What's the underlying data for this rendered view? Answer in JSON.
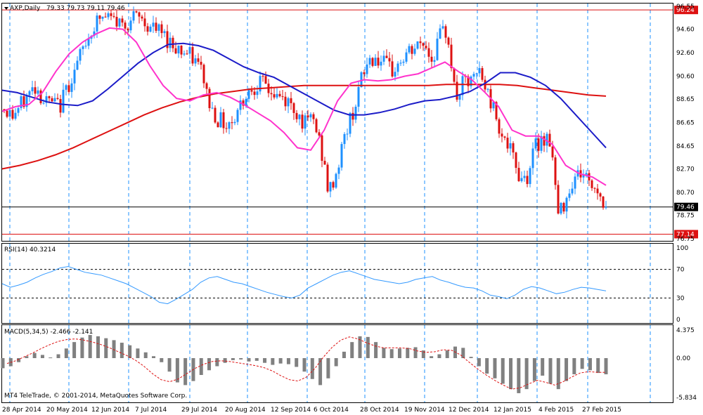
{
  "header": {
    "symbol_label": "AXP,Daily",
    "ohlc_values": "79.33 79.73 79.11 79.46"
  },
  "rsi_panel": {
    "label": "RSI(14) 40.3214"
  },
  "macd_panel": {
    "label": "MACD(5,34,5) -2.466 -2.141"
  },
  "copyright": "MT4 TeleTrade, © 2001-2014, MetaQuotes Software Corp.",
  "colors": {
    "background": "#ffffff",
    "bull_candle": "#1e90ff",
    "bear_candle": "#dd1111",
    "ma_fast": "#ff33cc",
    "ma_mid": "#1c1cc8",
    "ma_slow": "#dd1111",
    "grid": "#1e90ff",
    "rsi_line": "#3399ff",
    "macd_hist": "#808080",
    "macd_signal": "#dd1111",
    "hline_red": "#dd1111",
    "current_price_line": "#000000"
  },
  "chart_data": [
    {
      "type": "candlestick",
      "title": "AXP,Daily",
      "price_axis_labels": [
        "96.55",
        "94.60",
        "92.60",
        "90.60",
        "88.65",
        "86.65",
        "84.65",
        "82.70",
        "80.70",
        "78.75",
        "76.75"
      ],
      "price_axis_values": [
        96.55,
        94.6,
        92.6,
        90.6,
        88.65,
        86.65,
        84.65,
        82.7,
        80.7,
        78.75,
        76.75
      ],
      "ylim": [
        76.75,
        96.55
      ],
      "x_axis_labels": [
        "28 Apr 2014",
        "20 May 2014",
        "12 Jun 2014",
        "7 Jul 2014",
        "29 Jul 2014",
        "20 Aug 2014",
        "12 Sep 2014",
        "6 Oct 2014",
        "28 Oct 2014",
        "19 Nov 2014",
        "12 Dec 2014",
        "12 Jan 2015",
        "4 Feb 2015",
        "27 Feb 2015"
      ],
      "horizontal_lines": [
        {
          "label": "96.24",
          "value": 96.24,
          "color": "#dd1111"
        },
        {
          "label": "79.46",
          "value": 79.46,
          "color": "#000000"
        },
        {
          "label": "77.14",
          "value": 77.14,
          "color": "#dd1111"
        }
      ],
      "close_series": [
        87.8,
        87.2,
        88.0,
        89.0,
        89.8,
        88.5,
        88.3,
        88.0,
        89.8,
        91.2,
        93.0,
        94.5,
        95.5,
        95.6,
        95.3,
        95.0,
        95.4,
        95.6,
        95.0,
        94.6,
        94.2,
        93.5,
        93.0,
        92.5,
        92.0,
        91.0,
        88.0,
        87.0,
        86.5,
        87.0,
        88.5,
        89.5,
        90.0,
        89.8,
        89.0,
        88.7,
        88.3,
        87.5,
        86.5,
        87.0,
        84.5,
        80.5,
        82.5,
        85.5,
        87.5,
        90.0,
        92.0,
        92.2,
        91.5,
        91.0,
        91.8,
        92.5,
        93.0,
        93.5,
        92.0,
        94.0,
        94.5,
        88.5,
        90.0,
        90.0,
        91.0,
        89.2,
        87.5,
        85.5,
        84.0,
        82.2,
        82.0,
        84.5,
        85.5,
        85.2,
        78.5,
        80.5,
        82.0,
        82.5,
        81.5,
        80.8,
        79.46
      ],
      "ma_fast_label": "fast moving average",
      "ma_mid_label": "mid moving average",
      "ma_slow_label": "slow moving average",
      "ma_fast": [
        87.6,
        88.0,
        88.2,
        89.2,
        91.0,
        92.5,
        93.5,
        94.2,
        94.7,
        94.6,
        93.5,
        91.5,
        89.8,
        88.7,
        88.5,
        89.0,
        89.2,
        88.8,
        88.2,
        87.5,
        86.8,
        85.8,
        84.5,
        84.3,
        86.0,
        88.5,
        90.0,
        90.3,
        90.2,
        90.3,
        90.6,
        90.8,
        91.3,
        91.8,
        91.0,
        90.3,
        89.2,
        88.0,
        86.0,
        85.5,
        85.5,
        84.8,
        83.0,
        82.3,
        82.0,
        81.3
      ],
      "ma_mid": [
        89.4,
        89.2,
        88.8,
        88.4,
        88.2,
        88.1,
        88.5,
        89.5,
        90.6,
        91.7,
        92.6,
        93.3,
        93.4,
        93.2,
        92.8,
        92.1,
        91.4,
        90.9,
        90.5,
        89.8,
        89.1,
        88.4,
        87.7,
        87.3,
        87.3,
        87.5,
        87.8,
        88.2,
        88.5,
        88.6,
        88.9,
        89.3,
        90.0,
        90.9,
        90.9,
        90.5,
        89.8,
        88.7,
        87.3,
        85.9,
        84.5
      ],
      "ma_slow": [
        82.7,
        83.0,
        83.4,
        83.9,
        84.5,
        85.2,
        85.9,
        86.6,
        87.3,
        87.9,
        88.4,
        88.8,
        89.1,
        89.3,
        89.5,
        89.6,
        89.7,
        89.8,
        89.8,
        89.8,
        89.8,
        89.8,
        89.8,
        89.8,
        89.8,
        89.9,
        89.9,
        89.9,
        89.9,
        89.8,
        89.6,
        89.4,
        89.2,
        89.0,
        88.9
      ]
    },
    {
      "type": "line",
      "title": "RSI(14) 40.3214",
      "y_axis_labels": [
        "100",
        "70",
        "30",
        "0"
      ],
      "ylim": [
        0,
        100
      ],
      "levels": [
        70,
        30
      ],
      "values": [
        50,
        45,
        48,
        52,
        58,
        63,
        67,
        72,
        74,
        70,
        66,
        64,
        62,
        58,
        54,
        50,
        44,
        38,
        32,
        24,
        22,
        28,
        35,
        42,
        52,
        58,
        60,
        56,
        52,
        50,
        46,
        42,
        38,
        35,
        32,
        30,
        34,
        44,
        50,
        56,
        62,
        66,
        68,
        64,
        60,
        56,
        54,
        52,
        50,
        52,
        56,
        58,
        60,
        55,
        52,
        48,
        45,
        44,
        40,
        34,
        32,
        29,
        34,
        42,
        46,
        44,
        40,
        36,
        38,
        42,
        45,
        44,
        42,
        40
      ]
    },
    {
      "type": "bar",
      "title": "MACD(5,34,5) -2.466 -2.141",
      "y_axis_labels": [
        "4.375",
        "0.00",
        "-5.834"
      ],
      "ylim": [
        -5.834,
        4.375
      ],
      "histogram": [
        -1.5,
        -1.2,
        -0.6,
        0.3,
        0.8,
        0.5,
        0.1,
        0.6,
        1.5,
        2.5,
        3.2,
        3.6,
        3.4,
        3.1,
        2.8,
        2.4,
        2.0,
        1.5,
        0.9,
        0.3,
        -0.6,
        -2.0,
        -3.6,
        -4.0,
        -3.4,
        -2.5,
        -1.8,
        -1.2,
        -0.7,
        -0.3,
        -0.2,
        -0.5,
        -0.4,
        -0.7,
        -1.0,
        -0.8,
        -0.9,
        -1.3,
        -2.0,
        -3.1,
        -4.0,
        -3.0,
        -1.2,
        1.0,
        2.5,
        3.4,
        3.3,
        2.5,
        1.6,
        1.4,
        1.5,
        1.6,
        1.7,
        1.2,
        0.3,
        0.6,
        1.2,
        1.8,
        1.6,
        0.2,
        -1.2,
        -2.3,
        -3.0,
        -3.8,
        -4.6,
        -5.2,
        -4.6,
        -3.4,
        -2.6,
        -3.8,
        -4.6,
        -3.4,
        -2.4,
        -1.6,
        -1.8,
        -2.2,
        -2.4
      ],
      "signal": [
        -0.8,
        -0.4,
        0.2,
        0.8,
        1.5,
        2.1,
        2.6,
        2.9,
        3.0,
        2.8,
        2.5,
        2.1,
        1.6,
        1.0,
        0.4,
        -0.3,
        -1.2,
        -2.3,
        -3.2,
        -3.5,
        -3.1,
        -2.3,
        -1.5,
        -0.9,
        -0.5,
        -0.4,
        -0.5,
        -0.7,
        -0.9,
        -1.1,
        -1.4,
        -1.9,
        -2.6,
        -3.2,
        -3.4,
        -2.8,
        -1.5,
        0.2,
        1.7,
        2.8,
        3.3,
        3.0,
        2.4,
        1.9,
        1.6,
        1.6,
        1.6,
        1.5,
        1.1,
        0.9,
        1.0,
        1.3,
        1.2,
        0.5,
        -0.6,
        -1.6,
        -2.5,
        -3.3,
        -4.0,
        -4.6,
        -4.4,
        -3.8,
        -3.3,
        -3.6,
        -4.0,
        -3.5,
        -2.8,
        -2.2,
        -2.0,
        -2.1,
        -2.1
      ]
    }
  ]
}
